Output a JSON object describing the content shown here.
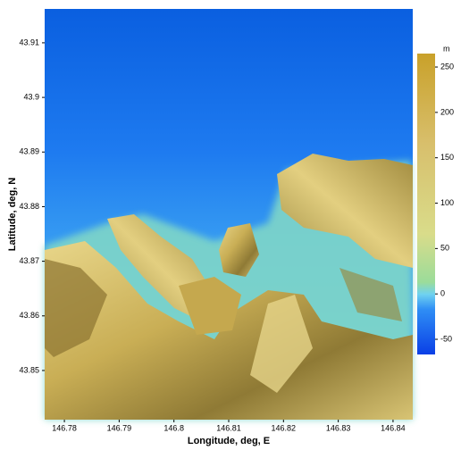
{
  "chart_data": {
    "type": "terrain",
    "xlabel": "Longitude, deg, E",
    "ylabel": "Latitude, deg, N",
    "xlim": [
      146.7764,
      146.8436
    ],
    "xticks": [
      146.78,
      146.79,
      146.8,
      146.81,
      146.82,
      146.83,
      146.84
    ],
    "ylim": [
      43.841,
      43.9162
    ],
    "yticks": [
      43.85,
      43.86,
      43.87,
      43.88,
      43.89,
      43.9,
      43.91
    ],
    "colorbar": {
      "label": "m",
      "lim": [
        -66.7,
        264.8
      ],
      "ticks": [
        -50,
        0,
        50,
        100,
        150,
        200,
        250
      ]
    }
  }
}
